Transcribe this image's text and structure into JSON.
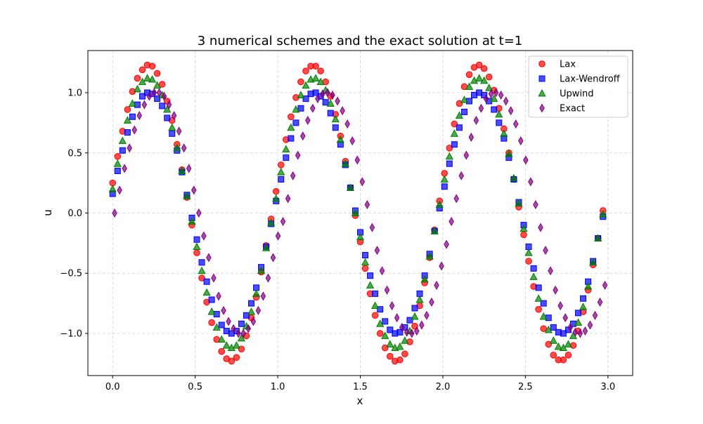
{
  "chart_data": {
    "type": "scatter",
    "title": "3 numerical schemes and the exact solution at t=1",
    "xlabel": "x",
    "ylabel": "u",
    "xlim": [
      -0.15,
      3.15
    ],
    "ylim": [
      -1.35,
      1.35
    ],
    "grid": true,
    "legend_position": "top-right",
    "x_ticks": [
      0.0,
      0.5,
      1.0,
      1.5,
      2.0,
      2.5,
      3.0
    ],
    "x_tick_labels": [
      "0.0",
      "0.5",
      "1.0",
      "1.5",
      "2.0",
      "2.5",
      "3.0"
    ],
    "y_ticks": [
      -1.0,
      -0.5,
      0.0,
      0.5,
      1.0
    ],
    "y_tick_labels": [
      "−1.0",
      "−0.5",
      "0.0",
      "0.5",
      "1.0"
    ],
    "x": [
      0.0,
      0.03,
      0.06,
      0.09,
      0.12,
      0.15,
      0.18,
      0.21,
      0.24,
      0.27,
      0.3,
      0.33,
      0.36,
      0.39,
      0.42,
      0.45,
      0.48,
      0.51,
      0.54,
      0.57,
      0.6,
      0.63,
      0.66,
      0.69,
      0.72,
      0.75,
      0.78,
      0.81,
      0.84,
      0.87,
      0.9,
      0.93,
      0.96,
      0.99,
      1.02,
      1.05,
      1.08,
      1.11,
      1.14,
      1.17,
      1.2,
      1.23,
      1.26,
      1.29,
      1.32,
      1.35,
      1.38,
      1.41,
      1.44,
      1.47,
      1.5,
      1.53,
      1.56,
      1.59,
      1.62,
      1.65,
      1.68,
      1.71,
      1.74,
      1.77,
      1.8,
      1.83,
      1.86,
      1.89,
      1.92,
      1.95,
      1.98,
      2.01,
      2.04,
      2.07,
      2.1,
      2.13,
      2.16,
      2.19,
      2.22,
      2.25,
      2.28,
      2.31,
      2.34,
      2.37,
      2.4,
      2.43,
      2.46,
      2.49,
      2.52,
      2.55,
      2.58,
      2.61,
      2.64,
      2.67,
      2.7,
      2.73,
      2.76,
      2.79,
      2.82,
      2.85,
      2.88,
      2.91,
      2.94,
      2.97
    ],
    "series": [
      {
        "name": "Lax",
        "marker": "circle",
        "color": "#ff0000",
        "x_shift": 0.0,
        "values": [
          0.25,
          0.47,
          0.68,
          0.86,
          1.01,
          1.12,
          1.19,
          1.23,
          1.22,
          1.16,
          1.07,
          0.93,
          0.77,
          0.57,
          0.36,
          0.13,
          -0.1,
          -0.33,
          -0.54,
          -0.74,
          -0.91,
          -1.05,
          -1.15,
          -1.21,
          -1.23,
          -1.2,
          -1.13,
          -1.02,
          -0.87,
          -0.7,
          -0.49,
          -0.27,
          -0.05,
          0.18,
          0.4,
          0.61,
          0.8,
          0.96,
          1.09,
          1.18,
          1.22,
          1.22,
          1.18,
          1.09,
          0.97,
          0.82,
          0.64,
          0.43,
          0.21,
          -0.02,
          -0.24,
          -0.46,
          -0.67,
          -0.85,
          -1.0,
          -1.12,
          -1.19,
          -1.23,
          -1.22,
          -1.17,
          -1.07,
          -0.94,
          -0.77,
          -0.58,
          -0.37,
          -0.14,
          0.1,
          0.33,
          0.54,
          0.74,
          0.91,
          1.05,
          1.15,
          1.21,
          1.23,
          1.2,
          1.13,
          1.02,
          0.87,
          0.7,
          0.5,
          0.28,
          0.05,
          -0.18,
          -0.4,
          -0.61,
          -0.8,
          -0.96,
          -1.09,
          -1.18,
          -1.22,
          -1.22,
          -1.18,
          -1.1,
          -0.98,
          -0.82,
          -0.64,
          -0.43,
          -0.21,
          0.02
        ]
      },
      {
        "name": "Lax-Wendroff",
        "marker": "square",
        "color": "#0000ff",
        "x_shift": 0.0,
        "values": [
          0.16,
          0.35,
          0.52,
          0.67,
          0.8,
          0.9,
          0.97,
          1.0,
          0.99,
          0.95,
          0.89,
          0.79,
          0.66,
          0.52,
          0.34,
          0.15,
          -0.04,
          -0.22,
          -0.41,
          -0.57,
          -0.72,
          -0.84,
          -0.93,
          -0.98,
          -1.0,
          -0.98,
          -0.92,
          -0.85,
          -0.75,
          -0.62,
          -0.45,
          -0.28,
          -0.09,
          0.1,
          0.28,
          0.46,
          0.62,
          0.75,
          0.87,
          0.95,
          0.99,
          1.0,
          0.97,
          0.92,
          0.83,
          0.71,
          0.57,
          0.4,
          0.21,
          0.02,
          -0.16,
          -0.35,
          -0.52,
          -0.67,
          -0.8,
          -0.9,
          -0.97,
          -1.0,
          -0.99,
          -0.95,
          -0.89,
          -0.79,
          -0.67,
          -0.52,
          -0.34,
          -0.15,
          0.04,
          0.22,
          0.41,
          0.57,
          0.71,
          0.84,
          0.93,
          0.98,
          1.0,
          0.98,
          0.93,
          0.86,
          0.75,
          0.62,
          0.46,
          0.28,
          0.09,
          -0.1,
          -0.28,
          -0.46,
          -0.62,
          -0.75,
          -0.87,
          -0.95,
          -0.99,
          -1.0,
          -0.97,
          -0.92,
          -0.83,
          -0.71,
          -0.57,
          -0.4,
          -0.21,
          -0.03
        ]
      },
      {
        "name": "Upwind",
        "marker": "triangle",
        "color": "#008000",
        "x_shift": 0.0,
        "values": [
          0.2,
          0.41,
          0.6,
          0.77,
          0.91,
          1.03,
          1.09,
          1.12,
          1.11,
          1.06,
          0.98,
          0.86,
          0.71,
          0.54,
          0.35,
          0.14,
          -0.07,
          -0.28,
          -0.48,
          -0.66,
          -0.82,
          -0.95,
          -1.05,
          -1.1,
          -1.12,
          -1.1,
          -1.04,
          -0.94,
          -0.82,
          -0.67,
          -0.48,
          -0.29,
          -0.08,
          0.12,
          0.34,
          0.53,
          0.71,
          0.86,
          0.98,
          1.06,
          1.11,
          1.12,
          1.09,
          1.02,
          0.91,
          0.78,
          0.61,
          0.41,
          0.21,
          0.0,
          -0.2,
          -0.41,
          -0.6,
          -0.77,
          -0.92,
          -1.02,
          -1.09,
          -1.12,
          -1.11,
          -1.06,
          -0.98,
          -0.86,
          -0.72,
          -0.55,
          -0.36,
          -0.15,
          0.07,
          0.28,
          0.47,
          0.66,
          0.81,
          0.94,
          1.05,
          1.1,
          1.12,
          1.1,
          1.04,
          0.95,
          0.82,
          0.66,
          0.49,
          0.29,
          0.08,
          -0.13,
          -0.33,
          -0.53,
          -0.71,
          -0.86,
          -0.97,
          -1.06,
          -1.11,
          -1.12,
          -1.09,
          -1.02,
          -0.91,
          -0.78,
          -0.61,
          -0.41,
          -0.21,
          -0.01
        ]
      },
      {
        "name": "Exact",
        "marker": "thin_diamond",
        "color": "#800080",
        "x_shift": 0.012,
        "values": [
          0.0,
          0.19,
          0.37,
          0.54,
          0.69,
          0.81,
          0.9,
          0.97,
          1.0,
          1.0,
          0.97,
          0.9,
          0.81,
          0.68,
          0.54,
          0.37,
          0.19,
          0.0,
          -0.19,
          -0.37,
          -0.54,
          -0.69,
          -0.81,
          -0.9,
          -0.96,
          -1.0,
          -1.0,
          -0.96,
          -0.9,
          -0.81,
          -0.69,
          -0.54,
          -0.37,
          -0.19,
          -0.07,
          0.12,
          0.31,
          0.48,
          0.64,
          0.77,
          0.87,
          0.95,
          0.99,
          1.0,
          0.98,
          0.93,
          0.85,
          0.74,
          0.6,
          0.44,
          0.26,
          0.07,
          -0.12,
          -0.31,
          -0.48,
          -0.64,
          -0.77,
          -0.87,
          -0.95,
          -0.99,
          -1.0,
          -0.98,
          -0.93,
          -0.85,
          -0.74,
          -0.6,
          -0.44,
          -0.26,
          -0.07,
          0.12,
          0.31,
          0.48,
          0.63,
          0.77,
          0.87,
          0.95,
          0.99,
          1.0,
          0.98,
          0.93,
          0.85,
          0.74,
          0.6,
          0.44,
          0.26,
          0.07,
          -0.12,
          -0.31,
          -0.48,
          -0.64,
          -0.77,
          -0.87,
          -0.95,
          -0.99,
          -1.0,
          -0.98,
          -0.93,
          -0.85,
          -0.74,
          -0.6
        ]
      }
    ]
  }
}
